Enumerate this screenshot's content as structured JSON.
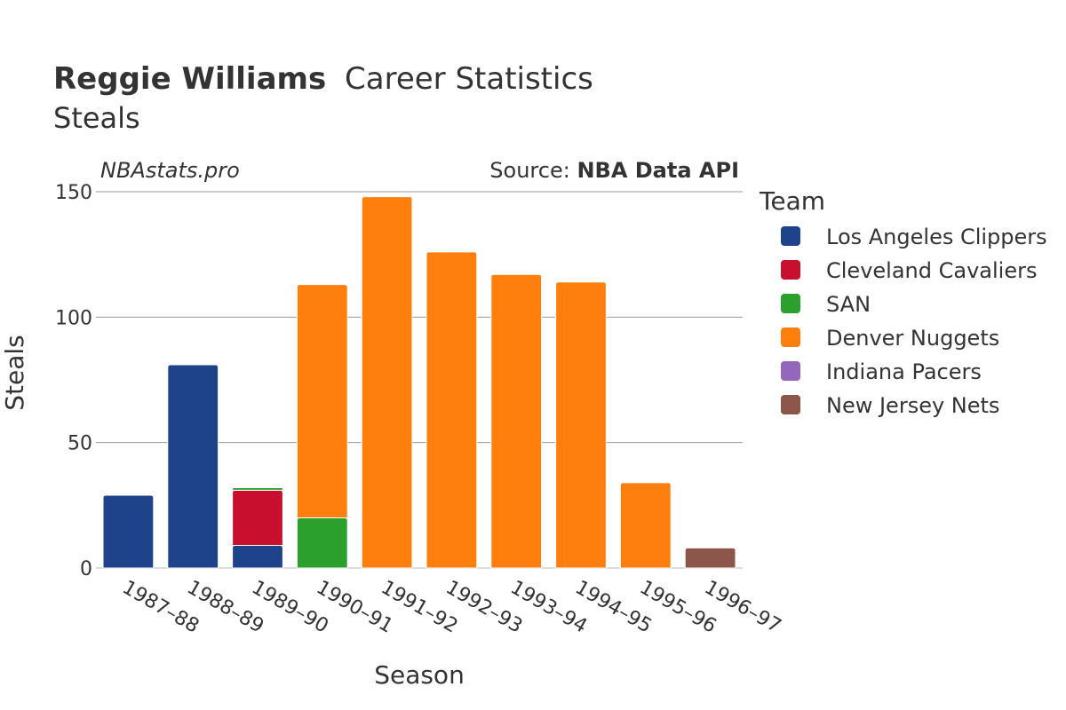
{
  "chart_data": {
    "type": "bar",
    "stacked": true,
    "title": {
      "player": "Reggie Williams",
      "rest": "Career Statistics",
      "stat": "Steals"
    },
    "watermark": "NBAstats.pro",
    "source": {
      "prefix": "Source: ",
      "name": "NBA Data API"
    },
    "xlabel": "Season",
    "ylabel": "Steals",
    "ylim": [
      0,
      150
    ],
    "yticks": [
      0,
      50,
      100,
      150
    ],
    "grid": true,
    "legend_title": "Team",
    "legend_position": "right",
    "categories": [
      "1987–88",
      "1988–89",
      "1989–90",
      "1990–91",
      "1991–92",
      "1992–93",
      "1993–94",
      "1994–95",
      "1995–96",
      "1996–97"
    ],
    "series": [
      {
        "name": "Los Angeles Clippers",
        "color": "#1f438a",
        "values": [
          29,
          81,
          9,
          0,
          0,
          0,
          0,
          0,
          0,
          0
        ]
      },
      {
        "name": "Cleveland Cavaliers",
        "color": "#c8102e",
        "values": [
          0,
          0,
          22,
          0,
          0,
          0,
          0,
          0,
          0,
          0
        ]
      },
      {
        "name": "SAN",
        "color": "#2ca02c",
        "values": [
          0,
          0,
          1,
          20,
          0,
          0,
          0,
          0,
          0,
          0
        ]
      },
      {
        "name": "Denver Nuggets",
        "color": "#ff7f0e",
        "values": [
          0,
          0,
          0,
          93,
          148,
          126,
          117,
          114,
          34,
          0
        ]
      },
      {
        "name": "Indiana Pacers",
        "color": "#9467bd",
        "values": [
          0,
          0,
          0,
          0,
          0,
          0,
          0,
          0,
          0,
          0
        ]
      },
      {
        "name": "New Jersey Nets",
        "color": "#8c564b",
        "values": [
          0,
          0,
          0,
          0,
          0,
          0,
          0,
          0,
          0,
          8
        ]
      }
    ]
  }
}
